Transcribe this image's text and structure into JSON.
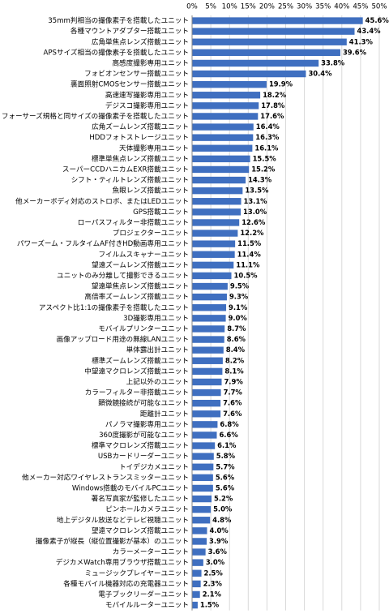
{
  "chart_data": {
    "type": "bar",
    "orientation": "horizontal",
    "color": "#3f6fc0",
    "grid": true,
    "categories": [
      "35mm判相当の撮像素子を搭載したユニット",
      "各種マウントアダプター搭載ユニット",
      "広角単焦点レンズ搭載ユニット",
      "APSサイズ相当の撮像素子を搭載したユニット",
      "高感度撮影専用ユニット",
      "フォビオンセンサー搭載ユニット",
      "裏面照射CMOSセンサー搭載ユニット",
      "高速連写撮影専用ユニット",
      "デジスコ撮影専用ユニット",
      "フォーサーズ規格と同サイズの撮像素子を搭載したユニット",
      "広角ズームレンズ搭載ユニット",
      "HDDフォトストレージユニット",
      "天体撮影専用ユニット",
      "標準単焦点レンズ搭載ユニット",
      "スーパーCCDハニカムEXR搭載ユニット",
      "シフト・ティルトレンズ搭載ユニット",
      "魚眼レンズ搭載ユニット",
      "他メーカーボディ対応のストロボ、またはLEDユニット",
      "GPS搭載ユニット",
      "ローパスフィルター非搭載ユニット",
      "プロジェクターユニット",
      "パワーズーム・フルタイムAF付きHD動画専用ユニット",
      "フイルムスキャナーユニット",
      "望遠ズームレンズ搭載ユニット",
      "ユニットのみ分離して撮影できるユニット",
      "望遠単焦点レンズ搭載ユニット",
      "高倍率ズームレンズ搭載ユニット",
      "アスペクト比1:1の撮像素子を搭載したユニット",
      "3D撮影専用ユニット",
      "モバイルプリンターユニット",
      "画像アップロード用途の無線LANユニット",
      "単体露出計ユニット",
      "標準ズームレンズ搭載ユニット",
      "中望遠マクロレンズ搭載ユニット",
      "上記以外のユニット",
      "カラーフィルター非搭載ユニット",
      "顕微鏡接続が可能なユニット",
      "距離計ユニット",
      "パノラマ撮影専用ユニット",
      "360度撮影が可能なユニット",
      "標準マクロレンズ搭載ユニット",
      "USBカードリーダーユニット",
      "トイデジカメユニット",
      "他メーカー対応ワイヤレストランスミッターユニット",
      "Windows搭載のモバイルPCユニット",
      "著名写真家が監修したユニット",
      "ピンホールカメラユニット",
      "地上デジタル放送などテレビ視聴ユニット",
      "望遠マクロレンズ搭載ユニット",
      "撮像素子が縦長（縦位置撮影が基本）のユニット",
      "カラーメーターユニット",
      "デジカメWatch専用ブラウザ搭載ユニット",
      "ミュージックプレイヤーユニット",
      "各種モバイル機器対応の充電器ユニット",
      "電子ブックリーダーユニット",
      "モバイルルーターユニット"
    ],
    "values": [
      45.6,
      43.4,
      41.3,
      39.6,
      33.8,
      30.4,
      19.9,
      18.2,
      17.8,
      17.6,
      16.4,
      16.3,
      16.1,
      15.5,
      15.2,
      14.3,
      13.5,
      13.1,
      13.0,
      12.6,
      12.2,
      11.5,
      11.4,
      11.1,
      10.5,
      9.5,
      9.3,
      9.1,
      9.0,
      8.7,
      8.6,
      8.4,
      8.2,
      8.1,
      7.9,
      7.7,
      7.6,
      7.6,
      6.8,
      6.6,
      6.1,
      5.8,
      5.7,
      5.6,
      5.6,
      5.2,
      5.0,
      4.8,
      4.0,
      3.9,
      3.6,
      3.0,
      2.5,
      2.3,
      2.1,
      1.5
    ],
    "value_labels": [
      "45.6%",
      "43.4%",
      "41.3%",
      "39.6%",
      "33.8%",
      "30.4%",
      "19.9%",
      "18.2%",
      "17.8%",
      "17.6%",
      "16.4%",
      "16.3%",
      "16.1%",
      "15.5%",
      "15.2%",
      "14.3%",
      "13.5%",
      "13.1%",
      "13.0%",
      "12.6%",
      "12.2%",
      "11.5%",
      "11.4%",
      "11.1%",
      "10.5%",
      "9.5%",
      "9.3%",
      "9.1%",
      "9.0%",
      "8.7%",
      "8.6%",
      "8.4%",
      "8.2%",
      "8.1%",
      "7.9%",
      "7.7%",
      "7.6%",
      "7.6%",
      "6.8%",
      "6.6%",
      "6.1%",
      "5.8%",
      "5.7%",
      "5.6%",
      "5.6%",
      "5.2%",
      "5.0%",
      "4.8%",
      "4.0%",
      "3.9%",
      "3.6%",
      "3.0%",
      "2.5%",
      "2.3%",
      "2.1%",
      "1.5%"
    ],
    "xlim": [
      0,
      50
    ],
    "xticks": [
      {
        "value": 0,
        "label": "0%"
      },
      {
        "value": 5,
        "label": "5%"
      },
      {
        "value": 10,
        "label": "10%"
      },
      {
        "value": 15,
        "label": "15%"
      },
      {
        "value": 20,
        "label": "20%"
      },
      {
        "value": 25,
        "label": "25%"
      },
      {
        "value": 30,
        "label": "30%"
      },
      {
        "value": 35,
        "label": "35%"
      },
      {
        "value": 40,
        "label": "40%"
      },
      {
        "value": 45,
        "label": "45%"
      },
      {
        "value": 50,
        "label": "50%"
      }
    ]
  }
}
